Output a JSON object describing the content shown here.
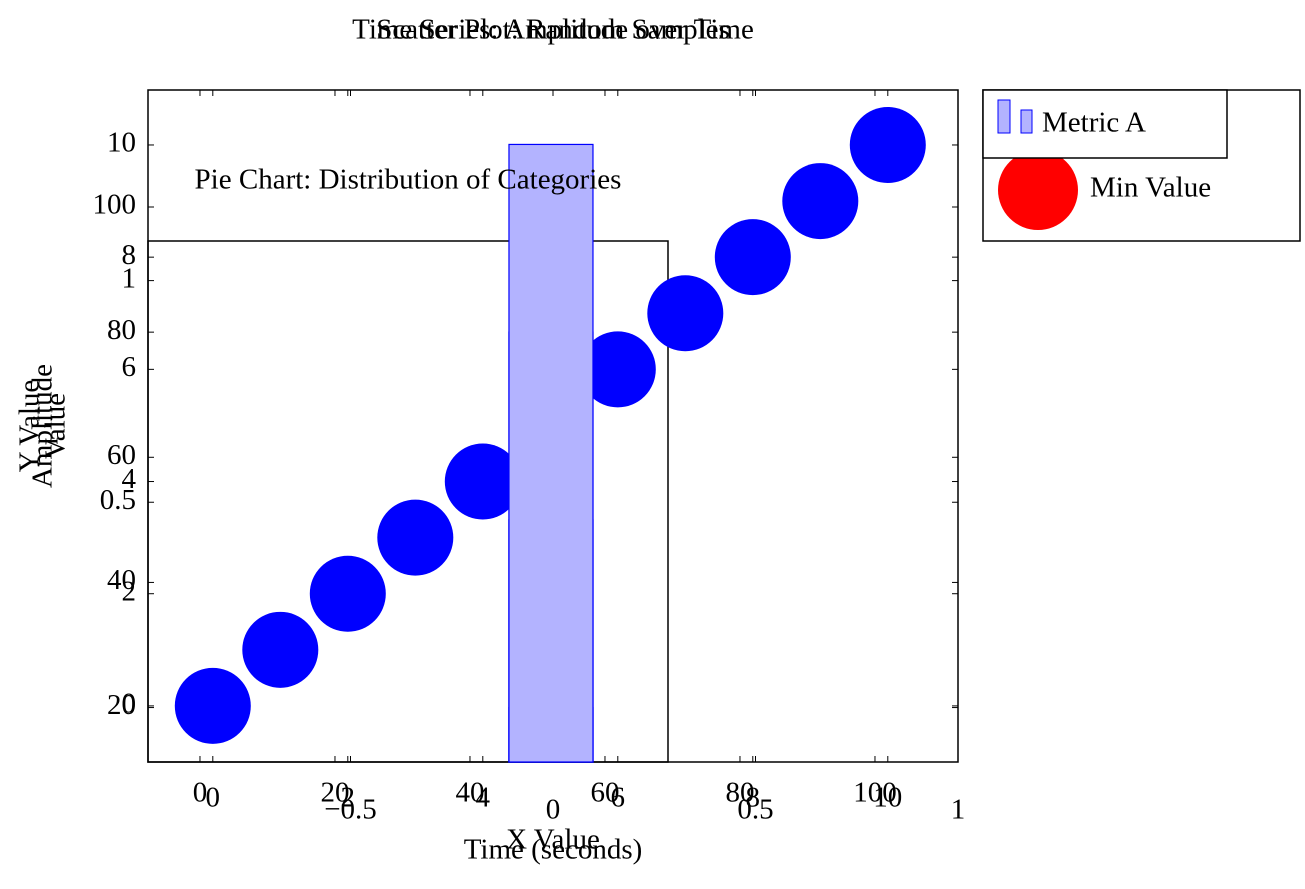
{
  "chart_data": [
    {
      "type": "scatter",
      "title": "Time Series: Amplitude over Time",
      "x_label": "Time (seconds)",
      "y_label": "Amplitude",
      "x": [
        0,
        1,
        2,
        3,
        4,
        5,
        6,
        7,
        8,
        9,
        10
      ],
      "series": [
        {
          "color": "#0000ff",
          "values": [
            0,
            1,
            2,
            3,
            4,
            5,
            6,
            7,
            8,
            9,
            10
          ]
        }
      ],
      "xlim": [
        -0.96,
        11.04
      ],
      "ylim": [
        -1,
        10.98
      ],
      "xticks": [
        0,
        2,
        4,
        6,
        8,
        10
      ],
      "yticks": [
        0,
        2,
        4,
        6,
        8,
        10
      ]
    },
    {
      "type": "scatter",
      "title": "Scatter Plot: Random Samples",
      "x_label": "X Value",
      "y_label": "Y Value",
      "x": [],
      "series": [
        {
          "name": "Min Value",
          "color": "#ff0000",
          "values": []
        }
      ],
      "xlim": [
        -1,
        1
      ],
      "ylim": [
        -0.086,
        1.43
      ],
      "xticks": [
        {
          "value": -0.5,
          "label": "−0.5"
        },
        0,
        0.5,
        1
      ],
      "yticks": [
        0.5,
        1
      ],
      "legend": "upper right"
    },
    {
      "type": "bar",
      "y_label": "Value",
      "x": [
        52,
        52,
        52,
        52
      ],
      "series": [
        {
          "name": "Metric A",
          "color": "#b3b3ff",
          "values": [
            20,
            50,
            80,
            110
          ]
        }
      ],
      "xlim": [
        -7.7,
        112.3
      ],
      "ylim": [
        11.3,
        118.7
      ],
      "xticks": [
        0,
        20,
        40,
        60,
        80,
        100
      ],
      "yticks": [
        20,
        40,
        60,
        80,
        100
      ],
      "legend": "upper right"
    },
    {
      "type": "pie",
      "title": "Pie Chart: Distribution of Categories"
    }
  ]
}
